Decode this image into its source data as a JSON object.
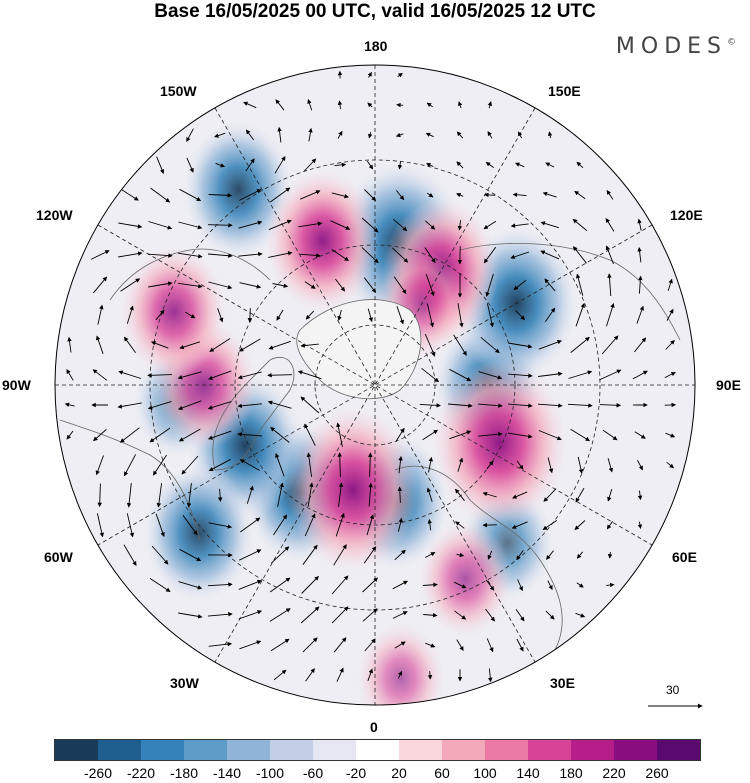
{
  "title": "Base 16/05/2025 00 UTC, valid 16/05/2025 12 UTC",
  "brand": "MODES",
  "brand_mark": "©",
  "longitude_labels": {
    "top": "180",
    "bottom": "0",
    "left": "90W",
    "right": "90E",
    "upper_left_1": "150W",
    "upper_left_2": "120W",
    "upper_right_1": "150E",
    "upper_right_2": "120E",
    "lower_left_1": "60W",
    "lower_left_2": "30W",
    "lower_right_1": "60E",
    "lower_right_2": "30E"
  },
  "reference_vector": "30",
  "colorbar": {
    "colors": [
      "#183b5a",
      "#1f5f8f",
      "#3582b8",
      "#5f9dc9",
      "#91b5d8",
      "#c3cfe6",
      "#e6e6f2",
      "#ffffff",
      "#fad7dc",
      "#f4a9bb",
      "#ec7aa6",
      "#d84398",
      "#b61e8a",
      "#8b0e81",
      "#5a0a6e"
    ],
    "ticks": [
      "-260",
      "-220",
      "-180",
      "-140",
      "-100",
      "-60",
      "-20",
      "20",
      "60",
      "100",
      "140",
      "180",
      "220",
      "260"
    ]
  },
  "anomaly_centers": [
    {
      "lon": -35,
      "colat": 48,
      "value": -160
    },
    {
      "lon": 170,
      "colat": 52,
      "value": -230
    },
    {
      "lon": -145,
      "colat": 78,
      "value": -150
    },
    {
      "lon": -65,
      "colat": 52,
      "value": -170
    },
    {
      "lon": -50,
      "colat": 76,
      "value": -150
    },
    {
      "lon": -85,
      "colat": 68,
      "value": -60
    },
    {
      "lon": 90,
      "colat": 42,
      "value": -140
    },
    {
      "lon": 120,
      "colat": 58,
      "value": -200
    },
    {
      "lon": 10,
      "colat": 44,
      "value": -140
    },
    {
      "lon": 40,
      "colat": 70,
      "value": -80
    },
    {
      "lon": -90,
      "colat": 60,
      "value": 120
    },
    {
      "lon": -160,
      "colat": 55,
      "value": 160
    },
    {
      "lon": 150,
      "colat": 48,
      "value": 170
    },
    {
      "lon": 65,
      "colat": 50,
      "value": 240
    },
    {
      "lon": -12,
      "colat": 40,
      "value": 230
    },
    {
      "lon": 25,
      "colat": 72,
      "value": 80
    },
    {
      "lon": -110,
      "colat": 72,
      "value": 130
    },
    {
      "lon": 150,
      "colat": 35,
      "value": 60
    },
    {
      "lon": 5,
      "colat": 90,
      "value": 60
    }
  ]
}
